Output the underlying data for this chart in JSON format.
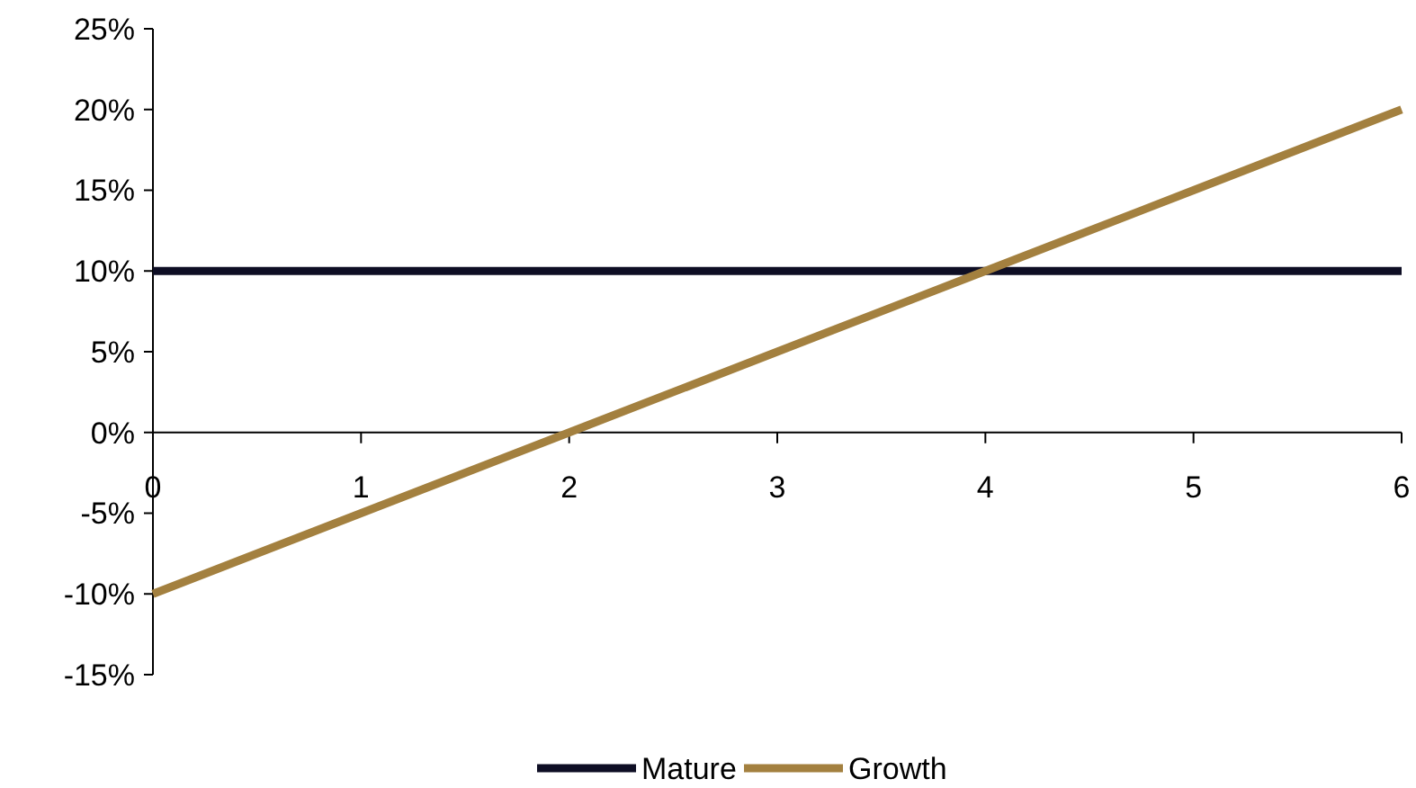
{
  "chart_data": {
    "type": "line",
    "x": [
      0,
      1,
      2,
      3,
      4,
      5,
      6
    ],
    "series": [
      {
        "name": "Mature",
        "color": "#0e0e24",
        "values": [
          10,
          10,
          10,
          10,
          10,
          10,
          10
        ]
      },
      {
        "name": "Growth",
        "color": "#a3803f",
        "values": [
          -10,
          -5,
          0,
          5,
          10,
          15,
          20
        ]
      }
    ],
    "xlim": [
      0,
      6
    ],
    "xticks": [
      0,
      1,
      2,
      3,
      4,
      5,
      6
    ],
    "ylim": [
      -15,
      25
    ],
    "yticks": [
      {
        "value": -15,
        "label": "-15%"
      },
      {
        "value": -10,
        "label": "-10%"
      },
      {
        "value": -5,
        "label": "-5%"
      },
      {
        "value": 0,
        "label": "0%"
      },
      {
        "value": 5,
        "label": "5%"
      },
      {
        "value": 10,
        "label": "10%"
      },
      {
        "value": 15,
        "label": "15%"
      },
      {
        "value": 20,
        "label": "20%"
      },
      {
        "value": 25,
        "label": "25%"
      }
    ],
    "grid": false,
    "legend": "bottom",
    "marker": "none",
    "line_style": "solid"
  }
}
